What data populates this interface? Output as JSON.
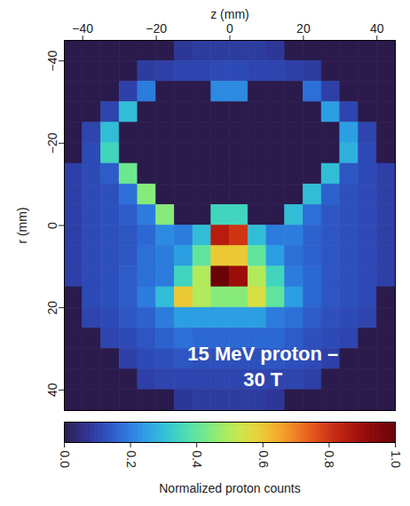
{
  "chart_data": {
    "type": "heatmap",
    "x_label": "z (mm)",
    "y_label": "r (mm)",
    "xlim": [
      -45,
      45
    ],
    "ylim": [
      -45,
      45
    ],
    "xticks": [
      -40,
      -20,
      0,
      20,
      40
    ],
    "yticks": [
      -40,
      -20,
      0,
      20,
      40
    ],
    "annotation": {
      "text": "15 MeV proton –\n30 T",
      "x": 9,
      "y": 34
    },
    "cells": {
      "x": [
        -42.5,
        -37.5,
        -32.5,
        -27.5,
        -22.5,
        -17.5,
        -12.5,
        -7.5,
        -2.5,
        2.5,
        7.5,
        12.5,
        17.5,
        22.5,
        27.5,
        32.5,
        37.5,
        42.5
      ],
      "y": [
        -42.5,
        -37.5,
        -32.5,
        -27.5,
        -22.5,
        -17.5,
        -12.5,
        -7.5,
        -2.5,
        2.5,
        7.5,
        12.5,
        17.5,
        22.5,
        27.5,
        32.5,
        37.5,
        42.5
      ],
      "values": [
        [
          0,
          0,
          0,
          0,
          0,
          0,
          0.08,
          0.09,
          0.09,
          0.09,
          0.09,
          0.08,
          0,
          0,
          0,
          0,
          0,
          0
        ],
        [
          0,
          0,
          0,
          0,
          0.09,
          0.1,
          0.11,
          0.11,
          0.12,
          0.12,
          0.11,
          0.11,
          0.1,
          0.09,
          0,
          0,
          0,
          0
        ],
        [
          0,
          0,
          0,
          0.1,
          0.2,
          0,
          0,
          0,
          0.22,
          0.22,
          0,
          0,
          0,
          0.18,
          0.1,
          0,
          0,
          0
        ],
        [
          0,
          0,
          0.11,
          0.3,
          0,
          0,
          0,
          0,
          0,
          0,
          0,
          0,
          0,
          0,
          0.25,
          0.11,
          0,
          0
        ],
        [
          0,
          0.11,
          0.3,
          0,
          0,
          0,
          0,
          0,
          0,
          0,
          0,
          0,
          0,
          0,
          0,
          0.25,
          0.11,
          0
        ],
        [
          0,
          0.12,
          0.35,
          0,
          0,
          0,
          0,
          0,
          0,
          0,
          0,
          0,
          0,
          0,
          0,
          0.28,
          0.12,
          0
        ],
        [
          0.1,
          0.12,
          0.15,
          0.42,
          0,
          0,
          0,
          0,
          0,
          0,
          0,
          0,
          0,
          0,
          0.3,
          0.14,
          0.12,
          0.1
        ],
        [
          0.1,
          0.12,
          0.13,
          0.18,
          0.45,
          0,
          0,
          0,
          0,
          0,
          0,
          0,
          0,
          0.3,
          0.16,
          0.13,
          0.12,
          0.1
        ],
        [
          0.1,
          0.12,
          0.13,
          0.15,
          0.2,
          0.45,
          0,
          0,
          0.35,
          0.35,
          0,
          0,
          0.3,
          0.18,
          0.14,
          0.13,
          0.12,
          0.1
        ],
        [
          0.1,
          0.12,
          0.13,
          0.14,
          0.17,
          0.22,
          0.2,
          0.3,
          0.85,
          0.8,
          0.3,
          0.2,
          0.2,
          0.16,
          0.14,
          0.13,
          0.12,
          0.1
        ],
        [
          0.1,
          0.12,
          0.13,
          0.14,
          0.18,
          0.2,
          0.25,
          0.4,
          0.6,
          0.6,
          0.4,
          0.25,
          0.18,
          0.16,
          0.14,
          0.13,
          0.12,
          0.1
        ],
        [
          0.1,
          0.12,
          0.13,
          0.15,
          0.18,
          0.2,
          0.35,
          0.5,
          1,
          0.9,
          0.5,
          0.35,
          0.2,
          0.17,
          0.14,
          0.13,
          0.12,
          0.1
        ],
        [
          0,
          0.12,
          0.13,
          0.15,
          0.2,
          0.3,
          0.6,
          0.5,
          0.45,
          0.45,
          0.55,
          0.4,
          0.25,
          0.17,
          0.14,
          0.13,
          0.12,
          0
        ],
        [
          0,
          0.11,
          0.12,
          0.14,
          0.16,
          0.2,
          0.25,
          0.25,
          0.25,
          0.25,
          0.25,
          0.2,
          0.18,
          0.15,
          0.13,
          0.12,
          0.11,
          0
        ],
        [
          0,
          0,
          0.11,
          0.12,
          0.14,
          0.16,
          0.18,
          0.17,
          0.17,
          0.17,
          0.17,
          0.17,
          0.15,
          0.13,
          0.12,
          0.11,
          0,
          0
        ],
        [
          0,
          0,
          0,
          0.1,
          0.12,
          0.13,
          0.14,
          0.13,
          0.13,
          0.13,
          0.13,
          0.14,
          0.13,
          0.12,
          0.1,
          0,
          0,
          0
        ],
        [
          0,
          0,
          0,
          0,
          0.1,
          0.11,
          0.11,
          0.11,
          0.11,
          0.11,
          0.11,
          0.11,
          0.11,
          0.1,
          0,
          0,
          0,
          0
        ],
        [
          0,
          0,
          0,
          0,
          0,
          0,
          0.08,
          0.09,
          0.09,
          0.09,
          0.09,
          0.08,
          0,
          0,
          0,
          0,
          0,
          0
        ]
      ]
    },
    "colorbar": {
      "label": "Normalized proton counts",
      "range": [
        0,
        1
      ],
      "ticks": [
        0,
        0.2,
        0.4,
        0.6,
        0.8,
        1
      ]
    }
  }
}
